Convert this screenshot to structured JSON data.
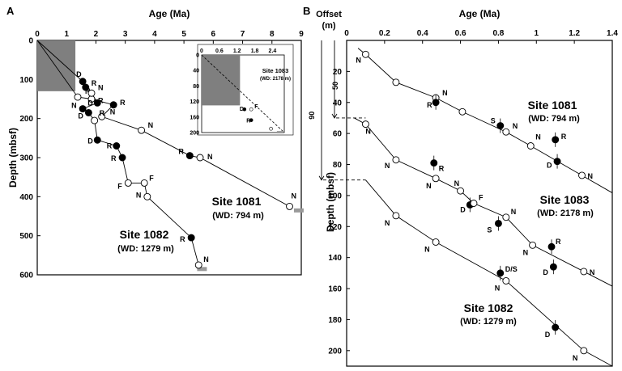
{
  "figure": {
    "panel_a_label": "A",
    "panel_b_label": "B"
  },
  "chart_data": [
    {
      "panel": "A",
      "type": "scatter",
      "xlabel": "Age (Ma)",
      "ylabel": "Depth (mbsf)",
      "xlim": [
        0,
        9
      ],
      "ylim": [
        0,
        600
      ],
      "x_ticks": [
        0,
        1,
        2,
        3,
        4,
        5,
        6,
        7,
        8,
        9
      ],
      "y_ticks": [
        0,
        100,
        200,
        300,
        400,
        500,
        600
      ],
      "shaded_region": {
        "x": [
          0,
          1.3
        ],
        "y": [
          0,
          130
        ]
      },
      "series": [
        {
          "name": "Site 1081",
          "subtitle": "(WD: 794 m)",
          "points": [
            {
              "x": 1.38,
              "y": 145,
              "label": "N",
              "filled": false
            },
            {
              "x": 1.85,
              "y": 150,
              "label": "R",
              "filled": false
            },
            {
              "x": 2.2,
              "y": 195,
              "label": "N",
              "filled": false
            },
            {
              "x": 2.6,
              "y": 165,
              "label": "R",
              "filled": true
            },
            {
              "x": 3.55,
              "y": 230,
              "label": "N",
              "filled": false
            },
            {
              "x": 5.2,
              "y": 295,
              "label": "R",
              "filled": true
            },
            {
              "x": 5.55,
              "y": 300,
              "label": "N",
              "filled": false
            },
            {
              "x": 8.6,
              "y": 425,
              "label": "N",
              "filled": false
            }
          ]
        },
        {
          "name": "Site 1082",
          "subtitle": "(WD: 1279 m)",
          "points": [
            {
              "x": 1.55,
              "y": 105,
              "label": "D",
              "filled": true
            },
            {
              "x": 1.65,
              "y": 120,
              "label": "R",
              "filled": true
            },
            {
              "x": 1.85,
              "y": 135,
              "label": "N",
              "filled": false
            },
            {
              "x": 2.05,
              "y": 160,
              "label": "D",
              "filled": true
            },
            {
              "x": 1.55,
              "y": 175,
              "label": "N",
              "filled": true
            },
            {
              "x": 1.75,
              "y": 185,
              "label": "D",
              "filled": true
            },
            {
              "x": 1.95,
              "y": 205,
              "label": "R",
              "filled": false
            },
            {
              "x": 2.05,
              "y": 255,
              "label": "D",
              "filled": true
            },
            {
              "x": 2.7,
              "y": 270,
              "label": "R",
              "filled": true
            },
            {
              "x": 2.9,
              "y": 300,
              "label": "R",
              "filled": true
            },
            {
              "x": 3.1,
              "y": 365,
              "label": "F",
              "filled": false
            },
            {
              "x": 3.65,
              "y": 365,
              "label": "F",
              "filled": false
            },
            {
              "x": 3.75,
              "y": 400,
              "label": "N",
              "filled": false
            },
            {
              "x": 5.25,
              "y": 505,
              "label": "R",
              "filled": true
            },
            {
              "x": 5.5,
              "y": 575,
              "label": "N",
              "filled": false
            }
          ]
        }
      ],
      "inset": {
        "title": "Site 1083",
        "subtitle": "(WD: 2178 m)",
        "xlim": [
          0,
          2.8
        ],
        "ylim": [
          0,
          200
        ],
        "x_ticks": [
          "0",
          "0.6",
          "1.2",
          "1.8",
          "2.4"
        ],
        "y_ticks": [
          "0",
          "40",
          "80",
          "120",
          "160",
          "200"
        ],
        "shaded_region": {
          "x": [
            0,
            1.3
          ],
          "y": [
            0,
            130
          ]
        },
        "points": [
          {
            "x": 1.45,
            "y": 140,
            "label": "D",
            "filled": true
          },
          {
            "x": 1.68,
            "y": 140,
            "label": "F",
            "filled": false
          },
          {
            "x": 1.68,
            "y": 168,
            "label": "R",
            "filled": true
          },
          {
            "x": 2.35,
            "y": 190,
            "label": "",
            "filled": false
          }
        ]
      }
    },
    {
      "panel": "B",
      "type": "scatter",
      "xlabel": "Age (Ma)",
      "ylabel": "Depth (mbsf)",
      "xlim": [
        0,
        1.4
      ],
      "ylim": [
        0,
        210
      ],
      "x_ticks": [
        "0",
        "0.2",
        "0.4",
        "0.6",
        "0.8",
        "1",
        "1.2",
        "1.4"
      ],
      "y_ticks": [
        20,
        40,
        60,
        80,
        100,
        120,
        140,
        160,
        180,
        200
      ],
      "offset": {
        "title": "Offset",
        "unit": "(m)",
        "values": [
          50,
          90
        ]
      },
      "series": [
        {
          "name": "Site 1081",
          "subtitle": "(WD: 794 m)",
          "offset": 0,
          "points": [
            {
              "x": 0.1,
              "y": 9,
              "label": "N",
              "filled": false
            },
            {
              "x": 0.26,
              "y": 27,
              "label": "",
              "filled": false
            },
            {
              "x": 0.47,
              "y": 37,
              "label": "N",
              "filled": false
            },
            {
              "x": 0.47,
              "y": 40,
              "label": "R",
              "filled": true
            },
            {
              "x": 0.61,
              "y": 46,
              "label": "",
              "filled": false
            },
            {
              "x": 0.81,
              "y": 55,
              "label": "S",
              "filled": true
            },
            {
              "x": 0.84,
              "y": 59,
              "label": "N",
              "filled": false
            },
            {
              "x": 0.97,
              "y": 68,
              "label": "N",
              "filled": false
            },
            {
              "x": 1.1,
              "y": 64,
              "label": "R",
              "filled": true
            },
            {
              "x": 1.11,
              "y": 78,
              "label": "D",
              "filled": true
            },
            {
              "x": 1.24,
              "y": 87,
              "label": "N",
              "filled": false
            }
          ]
        },
        {
          "name": "Site 1083",
          "subtitle": "(WD: 2178 m)",
          "offset": 50,
          "points": [
            {
              "x": 0.1,
              "y": 54,
              "label": "N",
              "filled": false
            },
            {
              "x": 0.26,
              "y": 77,
              "label": "N",
              "filled": false
            },
            {
              "x": 0.46,
              "y": 79,
              "label": "R",
              "filled": true
            },
            {
              "x": 0.47,
              "y": 89,
              "label": "N",
              "filled": false
            },
            {
              "x": 0.6,
              "y": 97,
              "label": "N",
              "filled": false
            },
            {
              "x": 0.65,
              "y": 106,
              "label": "D",
              "filled": true
            },
            {
              "x": 0.67,
              "y": 105,
              "label": "F",
              "filled": false
            },
            {
              "x": 0.8,
              "y": 118,
              "label": "S",
              "filled": true
            },
            {
              "x": 0.84,
              "y": 114,
              "label": "N",
              "filled": false
            },
            {
              "x": 0.98,
              "y": 132,
              "label": "N",
              "filled": false
            },
            {
              "x": 1.08,
              "y": 133,
              "label": "R",
              "filled": true
            },
            {
              "x": 1.09,
              "y": 146,
              "label": "D",
              "filled": true
            },
            {
              "x": 1.25,
              "y": 149,
              "label": "N",
              "filled": false
            }
          ]
        },
        {
          "name": "Site 1082",
          "subtitle": "(WD: 1279 m)",
          "offset": 90,
          "points": [
            {
              "x": 0.26,
              "y": 113,
              "label": "N",
              "filled": false
            },
            {
              "x": 0.47,
              "y": 130,
              "label": "N",
              "filled": false
            },
            {
              "x": 0.81,
              "y": 150,
              "label": "D/S",
              "filled": true
            },
            {
              "x": 0.84,
              "y": 155,
              "label": "N",
              "filled": false
            },
            {
              "x": 1.1,
              "y": 185,
              "label": "D",
              "filled": true
            },
            {
              "x": 1.25,
              "y": 200,
              "label": "N",
              "filled": false
            }
          ]
        }
      ]
    }
  ]
}
